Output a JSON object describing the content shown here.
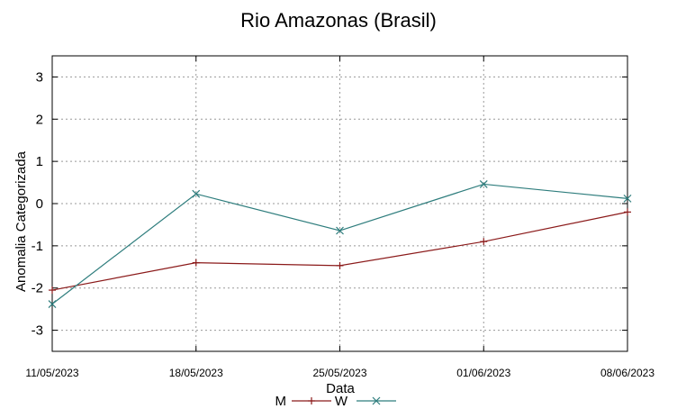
{
  "chart_data": {
    "type": "line",
    "title": "Rio Amazonas (Brasil)",
    "xlabel": "Data",
    "ylabel": "Anomalia Categorizada",
    "categories": [
      "11/05/2023",
      "18/05/2023",
      "25/05/2023",
      "01/06/2023",
      "08/06/2023"
    ],
    "yticks": [
      3,
      2,
      1,
      0,
      -1,
      -2,
      -3
    ],
    "ylim": [
      -3.5,
      3.5
    ],
    "grid": true,
    "legend_position": "bottom",
    "series": [
      {
        "name": "M",
        "color": "#8b1a1a",
        "marker": "plus",
        "values": [
          -2.05,
          -1.4,
          -1.47,
          -0.9,
          -0.2
        ]
      },
      {
        "name": "W",
        "color": "#2e7d7d",
        "marker": "cross",
        "values": [
          -2.38,
          0.23,
          -0.64,
          0.46,
          0.12
        ]
      }
    ]
  }
}
